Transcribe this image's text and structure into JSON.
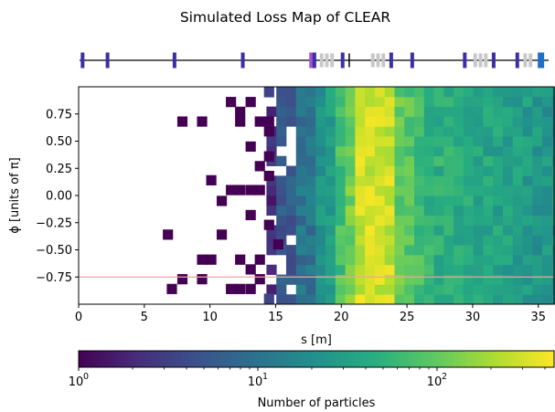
{
  "chart_data": [
    {
      "type": "beamline",
      "title": "Simulated Loss Map of CLEAR",
      "xlim": [
        0,
        36.2
      ],
      "element_colors": {
        "dipole": "#3b2fa6",
        "quadrupole": "#c8c8c8",
        "marker": "#000000",
        "corrector": "#a64fd6",
        "dump": "#1f6fc4"
      },
      "elements": [
        {
          "kind": "dipole",
          "s": 0.3
        },
        {
          "kind": "dipole",
          "s": 2.2
        },
        {
          "kind": "dipole",
          "s": 7.3
        },
        {
          "kind": "dipole",
          "s": 12.5
        },
        {
          "kind": "corrector",
          "s": 17.7
        },
        {
          "kind": "dipole",
          "s": 17.95
        },
        {
          "kind": "quadrupole",
          "s": 18.5
        },
        {
          "kind": "quadrupole",
          "s": 18.9
        },
        {
          "kind": "quadrupole",
          "s": 19.3
        },
        {
          "kind": "dipole",
          "s": 20.1
        },
        {
          "kind": "marker",
          "s": 20.6
        },
        {
          "kind": "quadrupole",
          "s": 22.4
        },
        {
          "kind": "quadrupole",
          "s": 22.8
        },
        {
          "kind": "quadrupole",
          "s": 23.2
        },
        {
          "kind": "dipole",
          "s": 23.8
        },
        {
          "kind": "dipole",
          "s": 25.4
        },
        {
          "kind": "dipole",
          "s": 29.4
        },
        {
          "kind": "quadrupole",
          "s": 30.2
        },
        {
          "kind": "quadrupole",
          "s": 30.6
        },
        {
          "kind": "quadrupole",
          "s": 31.0
        },
        {
          "kind": "dipole",
          "s": 31.6
        },
        {
          "kind": "dipole",
          "s": 33.4
        },
        {
          "kind": "quadrupole",
          "s": 34.0
        },
        {
          "kind": "quadrupole",
          "s": 34.4
        },
        {
          "kind": "dump",
          "s": 35.2
        }
      ]
    },
    {
      "type": "heatmap",
      "xlabel": "s [m]",
      "ylabel": "ϕ [units of π]",
      "xlim": [
        0,
        36.2
      ],
      "ylim": [
        -1,
        1
      ],
      "xticks": [
        0,
        5,
        10,
        15,
        20,
        25,
        30,
        35
      ],
      "yticks": [
        0.75,
        0.5,
        0.25,
        0.0,
        -0.25,
        -0.5,
        -0.75
      ],
      "ytick_labels": [
        "0.75",
        "0.50",
        "0.25",
        "0.00",
        "−0.25",
        "−0.50",
        "−0.75"
      ],
      "bin_width_s": 0.75,
      "n_phi_bins": 22,
      "color_scale": "log",
      "reference_line": {
        "phi": -0.75,
        "color": "#f4a0a0"
      },
      "sparse_cells": [
        [
          11.6,
          0.86
        ],
        [
          13.1,
          0.86
        ],
        [
          7.9,
          0.68
        ],
        [
          9.4,
          0.68
        ],
        [
          12.3,
          0.77
        ],
        [
          12.3,
          0.68
        ],
        [
          13.8,
          0.68
        ],
        [
          14.5,
          0.68
        ],
        [
          14.5,
          0.59
        ],
        [
          13.1,
          0.45
        ],
        [
          13.8,
          0.27
        ],
        [
          14.5,
          0.36
        ],
        [
          14.5,
          0.18
        ],
        [
          10.1,
          0.14
        ],
        [
          11.6,
          0.05
        ],
        [
          12.3,
          0.05
        ],
        [
          13.1,
          0.05
        ],
        [
          13.8,
          0.05
        ],
        [
          10.9,
          -0.05
        ],
        [
          13.1,
          -0.18
        ],
        [
          14.5,
          -0.27
        ],
        [
          6.8,
          -0.36
        ],
        [
          10.9,
          -0.36
        ],
        [
          15.2,
          -0.45
        ],
        [
          9.4,
          -0.59
        ],
        [
          10.1,
          -0.59
        ],
        [
          12.3,
          -0.59
        ],
        [
          13.8,
          -0.59
        ],
        [
          13.1,
          -0.68
        ],
        [
          7.9,
          -0.77
        ],
        [
          9.4,
          -0.77
        ],
        [
          13.8,
          -0.77
        ],
        [
          7.1,
          -0.86
        ],
        [
          11.6,
          -0.86
        ],
        [
          12.3,
          -0.86
        ],
        [
          13.1,
          -0.86
        ],
        [
          14.5,
          -0.95
        ],
        [
          14.5,
          0.95
        ]
      ],
      "colorbar": {
        "label": "Number of particles",
        "scale": "log",
        "range": [
          1,
          450
        ],
        "tick_labels": [
          {
            "value": 1,
            "label": "10",
            "sup": "0"
          },
          {
            "value": 10,
            "label": "10",
            "sup": "1"
          },
          {
            "value": 100,
            "label": "10",
            "sup": "2"
          }
        ]
      }
    }
  ]
}
